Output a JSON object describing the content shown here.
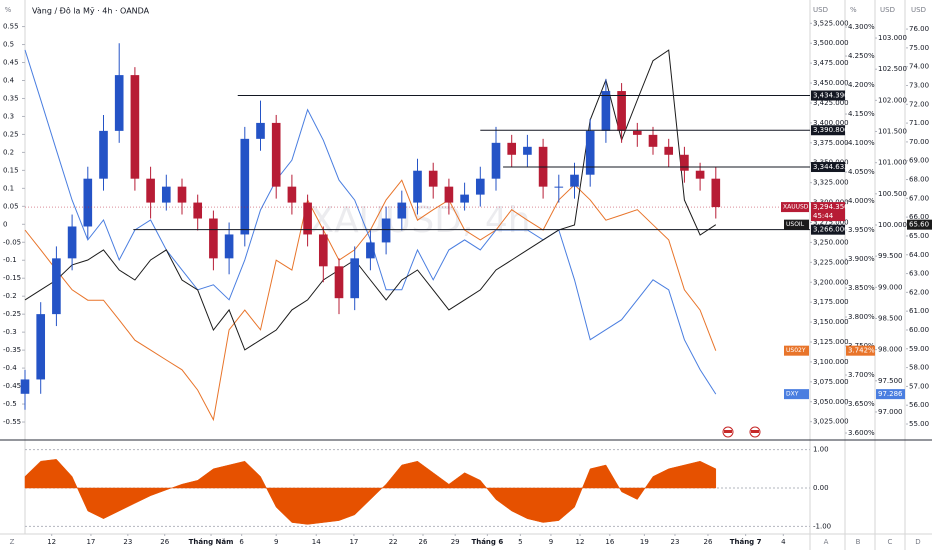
{
  "axis_letters": [
    "Z",
    "A",
    "B",
    "C",
    "D"
  ],
  "chart_data": [
    {
      "type": "candlestick",
      "title": "Vàng / Đô la Mỹ · 4h · OANDA",
      "watermark": "XAUUSD, 4h",
      "name": "XAUUSD",
      "axis_title": "USD",
      "x": [
        0,
        2,
        4,
        6,
        8,
        10,
        12,
        14,
        16,
        18,
        20,
        22,
        24,
        26,
        28,
        30,
        32,
        34,
        36,
        38,
        40,
        42,
        44,
        46,
        48,
        50,
        52,
        54,
        56,
        58,
        60,
        62,
        64,
        66,
        68,
        70,
        72,
        74,
        76,
        78,
        80,
        82,
        84,
        86,
        88
      ],
      "xlim": [
        0,
        100
      ],
      "xticks": [
        {
          "value": 3.4,
          "label": "12"
        },
        {
          "value": 8.4,
          "label": "17"
        },
        {
          "value": 13.1,
          "label": "23"
        },
        {
          "value": 17.8,
          "label": "26"
        },
        {
          "value": 23.7,
          "label": "Tháng Năm"
        },
        {
          "value": 27.6,
          "label": "6"
        },
        {
          "value": 32,
          "label": "9"
        },
        {
          "value": 37.1,
          "label": "14"
        },
        {
          "value": 41.9,
          "label": "17"
        },
        {
          "value": 46.9,
          "label": "22"
        },
        {
          "value": 50.7,
          "label": "26"
        },
        {
          "value": 54.8,
          "label": "29"
        },
        {
          "value": 58.9,
          "label": "Tháng 6"
        },
        {
          "value": 63.1,
          "label": "5"
        },
        {
          "value": 67,
          "label": "9"
        },
        {
          "value": 70.7,
          "label": "12"
        },
        {
          "value": 74.5,
          "label": "16"
        },
        {
          "value": 78.9,
          "label": "19"
        },
        {
          "value": 82.8,
          "label": "23"
        },
        {
          "value": 87,
          "label": "26"
        },
        {
          "value": 91.8,
          "label": "Tháng 7"
        },
        {
          "value": 96.6,
          "label": "4"
        }
      ],
      "open": [
        3060,
        3078,
        3160,
        3230,
        3270,
        3330,
        3390,
        3460,
        3330,
        3300,
        3320,
        3300,
        3280,
        3230,
        3260,
        3380,
        3400,
        3320,
        3300,
        3260,
        3220,
        3180,
        3230,
        3250,
        3280,
        3300,
        3340,
        3320,
        3300,
        3310,
        3330,
        3375,
        3360,
        3370,
        3320,
        3320,
        3335,
        3390,
        3440,
        3390,
        3385,
        3370,
        3360,
        3340,
        3330
      ],
      "high": [
        3090,
        3175,
        3245,
        3285,
        3345,
        3410,
        3500,
        3470,
        3345,
        3335,
        3330,
        3310,
        3290,
        3275,
        3395,
        3428,
        3410,
        3335,
        3310,
        3270,
        3230,
        3245,
        3265,
        3295,
        3315,
        3355,
        3350,
        3330,
        3325,
        3345,
        3395,
        3385,
        3385,
        3380,
        3335,
        3350,
        3405,
        3455,
        3450,
        3400,
        3395,
        3380,
        3370,
        3350,
        3345
      ],
      "low": [
        3040,
        3060,
        3145,
        3215,
        3255,
        3315,
        3375,
        3315,
        3280,
        3290,
        3285,
        3265,
        3215,
        3210,
        3245,
        3365,
        3305,
        3285,
        3245,
        3200,
        3160,
        3165,
        3215,
        3235,
        3265,
        3285,
        3305,
        3285,
        3290,
        3295,
        3315,
        3345,
        3345,
        3305,
        3300,
        3305,
        3320,
        3375,
        3375,
        3370,
        3360,
        3345,
        3325,
        3315,
        3280
      ],
      "close": [
        3078,
        3160,
        3230,
        3270,
        3330,
        3390,
        3460,
        3330,
        3300,
        3320,
        3300,
        3280,
        3230,
        3260,
        3380,
        3400,
        3320,
        3300,
        3260,
        3220,
        3180,
        3230,
        3250,
        3280,
        3300,
        3340,
        3320,
        3300,
        3310,
        3330,
        3375,
        3360,
        3370,
        3320,
        3320,
        3335,
        3390,
        3440,
        3390,
        3385,
        3370,
        3360,
        3340,
        3330,
        3294.35
      ],
      "up_color": "#2453c6",
      "down_color": "#b71c35",
      "ylim": [
        3002,
        3548
      ],
      "yticks": [
        {
          "value": 3025,
          "label": "3,025.000"
        },
        {
          "value": 3050,
          "label": "3,050.000"
        },
        {
          "value": 3075,
          "label": "3,075.000"
        },
        {
          "value": 3100,
          "label": "3,100.000"
        },
        {
          "value": 3125,
          "label": "3,125.000"
        },
        {
          "value": 3150,
          "label": "3,150.000"
        },
        {
          "value": 3175,
          "label": "3,175.000"
        },
        {
          "value": 3200,
          "label": "3,200.000"
        },
        {
          "value": 3225,
          "label": "3,225.000"
        },
        {
          "value": 3250,
          "label": "3,250.000"
        },
        {
          "value": 3275,
          "label": "3,275.000"
        },
        {
          "value": 3300,
          "label": "3,300.000"
        },
        {
          "value": 3325,
          "label": "3,325.000"
        },
        {
          "value": 3350,
          "label": "3,350.000"
        },
        {
          "value": 3375,
          "label": "3,375.000"
        },
        {
          "value": 3400,
          "label": "3,400.000"
        },
        {
          "value": 3425,
          "label": "3,425.000"
        },
        {
          "value": 3450,
          "label": "3,450.000"
        },
        {
          "value": 3475,
          "label": "3,475.000"
        },
        {
          "value": 3500,
          "label": "3,500.000"
        },
        {
          "value": 3525,
          "label": "3,525.000"
        }
      ],
      "last_label": "3,294.350",
      "countdown": "45:44",
      "levels": [
        {
          "value": 3434.396,
          "label": "3,434.396",
          "start": 27.1
        },
        {
          "value": 3390.806,
          "label": "3,390.806",
          "start": 58
        },
        {
          "value": 3344.633,
          "label": "3,344.633",
          "start": 60.9
        },
        {
          "value": 3266,
          "label": "3,266.000",
          "start": 13.8
        }
      ],
      "percent_axis": {
        "title": "%",
        "ylim": [
          -0.6,
          0.61
        ],
        "ticks": [
          0.55,
          0.5,
          0.45,
          0.4,
          0.35,
          0.3,
          0.25,
          0.2,
          0.15,
          0.1,
          0.05,
          0,
          -0.05,
          -0.1,
          -0.15,
          -0.2,
          -0.25,
          -0.3,
          -0.35,
          -0.4,
          -0.45,
          -0.5,
          -0.55
        ]
      },
      "series": [
        {
          "name": "US02Y",
          "color": "#e8742a",
          "axis_title": "%",
          "last_label": "3.742%",
          "ylim": [
            3.588,
            4.338
          ],
          "yticks": [
            {
              "value": 3.6,
              "label": "3.600%"
            },
            {
              "value": 3.65,
              "label": "3.650%"
            },
            {
              "value": 3.7,
              "label": "3.700%"
            },
            {
              "value": 3.75,
              "label": "3.750%"
            },
            {
              "value": 3.8,
              "label": "3.800%"
            },
            {
              "value": 3.85,
              "label": "3.850%"
            },
            {
              "value": 3.9,
              "label": "3.900%"
            },
            {
              "value": 3.95,
              "label": "3.950%"
            },
            {
              "value": 4,
              "label": "4.000%"
            },
            {
              "value": 4.05,
              "label": "4.050%"
            },
            {
              "value": 4.1,
              "label": "4.100%"
            },
            {
              "value": 4.15,
              "label": "4.150%"
            },
            {
              "value": 4.2,
              "label": "4.200%"
            },
            {
              "value": 4.25,
              "label": "4.250%"
            },
            {
              "value": 4.3,
              "label": "4.300%"
            }
          ],
          "values": [
            3.95,
            3.916,
            3.881,
            3.847,
            3.829,
            3.829,
            3.795,
            3.76,
            3.743,
            3.726,
            3.709,
            3.674,
            3.623,
            3.778,
            3.812,
            3.778,
            3.898,
            3.881,
            4.002,
            3.95,
            3.898,
            3.916,
            3.95,
            4.002,
            4.036,
            3.967,
            3.985,
            4.002,
            3.95,
            3.933,
            3.95,
            3.985,
            3.967,
            3.95,
            4.002,
            4.028,
            4.002,
            3.967,
            3.976,
            3.985,
            3.959,
            3.933,
            3.847,
            3.812,
            3.742
          ]
        },
        {
          "name": "DXY",
          "color": "#4a7ee0",
          "axis_title": "USD",
          "last_label": "97.286",
          "ylim": [
            96.55,
            103.53
          ],
          "yticks": [
            {
              "value": 97,
              "label": "97.000"
            },
            {
              "value": 97.5,
              "label": "97.500"
            },
            {
              "value": 98,
              "label": "98.000"
            },
            {
              "value": 98.5,
              "label": "98.500"
            },
            {
              "value": 99,
              "label": "99.000"
            },
            {
              "value": 99.5,
              "label": "99.500"
            },
            {
              "value": 100,
              "label": "100.000"
            },
            {
              "value": 100.5,
              "label": "100.500"
            },
            {
              "value": 101,
              "label": "101.000"
            },
            {
              "value": 101.5,
              "label": "101.500"
            },
            {
              "value": 102,
              "label": "102.000"
            },
            {
              "value": 102.5,
              "label": "102.500"
            },
            {
              "value": 103,
              "label": "103.000"
            }
          ],
          "values": [
            102.81,
            102.01,
            101.2,
            100.4,
            99.76,
            100.08,
            99.44,
            99.92,
            100.08,
            99.6,
            99.28,
            98.96,
            99.04,
            98.8,
            99.44,
            100.24,
            100.72,
            101.04,
            101.85,
            101.36,
            100.72,
            100.4,
            99.76,
            98.96,
            98.96,
            99.6,
            99.12,
            99.6,
            99.76,
            99.6,
            99.92,
            99.92,
            99.92,
            99.76,
            99.92,
            99.12,
            98.16,
            98.32,
            98.48,
            98.8,
            99.12,
            98.96,
            98.16,
            97.68,
            97.286
          ]
        },
        {
          "name": "USOIL",
          "color": "#1b1b1b",
          "axis_title": "USD",
          "last_label": "65.60",
          "ylim": [
            54.15,
            77.28
          ],
          "yticks": [
            {
              "value": 55,
              "label": "55.00"
            },
            {
              "value": 56,
              "label": "56.00"
            },
            {
              "value": 57,
              "label": "57.00"
            },
            {
              "value": 58,
              "label": "58.00"
            },
            {
              "value": 59,
              "label": "59.00"
            },
            {
              "value": 60,
              "label": "60.00"
            },
            {
              "value": 61,
              "label": "61.00"
            },
            {
              "value": 62,
              "label": "62.00"
            },
            {
              "value": 63,
              "label": "63.00"
            },
            {
              "value": 64,
              "label": "64.00"
            },
            {
              "value": 65,
              "label": "65.00"
            },
            {
              "value": 66,
              "label": "66.00"
            },
            {
              "value": 67,
              "label": "67.00"
            },
            {
              "value": 68,
              "label": "68.00"
            },
            {
              "value": 69,
              "label": "69.00"
            },
            {
              "value": 70,
              "label": "70.00"
            },
            {
              "value": 71,
              "label": "71.00"
            },
            {
              "value": 72,
              "label": "72.00"
            },
            {
              "value": 73,
              "label": "73.00"
            },
            {
              "value": 74,
              "label": "74.00"
            },
            {
              "value": 75,
              "label": "75.00"
            },
            {
              "value": 76,
              "label": "76.00"
            }
          ],
          "values": [
            61.6,
            62.13,
            62.66,
            63.46,
            63.72,
            64.26,
            63.19,
            62.66,
            63.72,
            64.26,
            62.66,
            62.13,
            60,
            61.07,
            58.94,
            59.47,
            60,
            61.07,
            61.6,
            62.66,
            63.19,
            63.72,
            62.66,
            61.6,
            62.66,
            63.19,
            62.13,
            61.07,
            61.6,
            62.13,
            63.19,
            63.72,
            64.26,
            64.79,
            65.32,
            65.58,
            71.17,
            73.29,
            70.1,
            72.23,
            74.32,
            74.88,
            66.91,
            65.05,
            65.6
          ]
        }
      ]
    },
    {
      "type": "area",
      "color": "#e65100",
      "ylim": [
        -1.2,
        1.2
      ],
      "yticks": [
        {
          "value": 1,
          "label": "1.00"
        },
        {
          "value": 0,
          "label": "0.00"
        },
        {
          "value": -1,
          "label": "-1.00"
        }
      ],
      "values": [
        0.3,
        0.7,
        0.75,
        0.3,
        -0.6,
        -0.8,
        -0.6,
        -0.4,
        -0.2,
        -0.05,
        0.1,
        0.2,
        0.5,
        0.6,
        0.7,
        0.3,
        -0.5,
        -0.9,
        -0.95,
        -0.9,
        -0.85,
        -0.7,
        -0.3,
        0.1,
        0.6,
        0.7,
        0.4,
        0.1,
        0.4,
        0.2,
        -0.3,
        -0.6,
        -0.8,
        -0.9,
        -0.85,
        -0.5,
        0.5,
        0.6,
        -0.1,
        -0.3,
        0.3,
        0.5,
        0.6,
        0.7,
        0.5
      ]
    }
  ]
}
